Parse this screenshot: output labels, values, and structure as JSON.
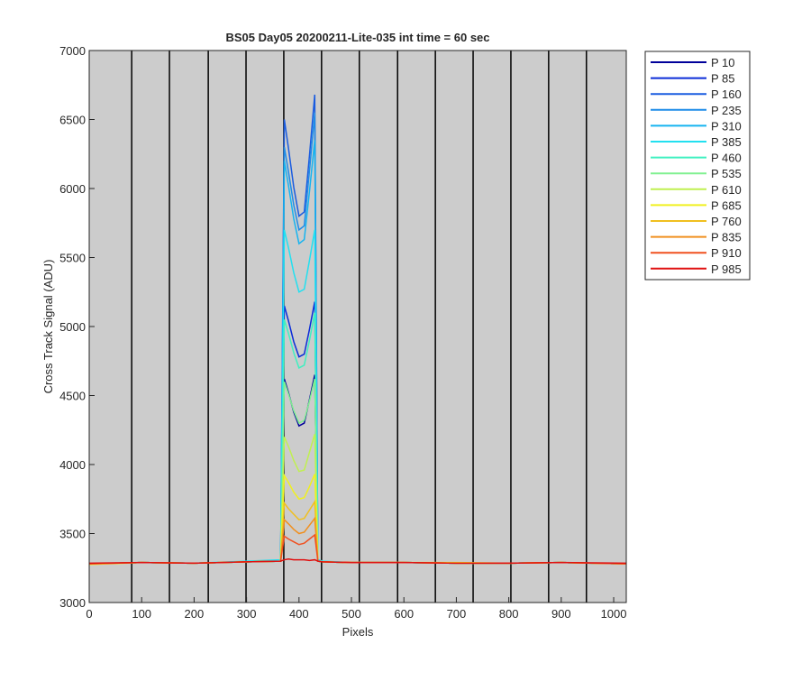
{
  "chart_data": {
    "type": "line",
    "title": "BS05 Day05 20200211-Lite-035 int time = 60 sec",
    "xlabel": "Pixels",
    "ylabel": "Cross Track Signal (ADU)",
    "x": [
      0,
      100,
      200,
      300,
      365,
      372,
      380,
      390,
      400,
      410,
      420,
      430,
      436,
      445,
      500,
      600,
      700,
      800,
      900,
      1024
    ],
    "xlim": [
      0,
      1024
    ],
    "ylim": [
      3000,
      7000
    ],
    "xticks": [
      0,
      100,
      200,
      300,
      400,
      500,
      600,
      700,
      800,
      900,
      1000
    ],
    "yticks": [
      3000,
      3500,
      4000,
      4500,
      5000,
      5500,
      6000,
      6500,
      7000
    ],
    "vertical_lines": [
      81,
      153,
      227,
      299,
      371,
      443,
      515,
      588,
      660,
      732,
      804,
      876,
      948
    ],
    "background": "#cccccc",
    "legend": "outside-right",
    "series": [
      {
        "name": "P 10",
        "color": "#00009a",
        "values": [
          3280,
          3290,
          3285,
          3295,
          3300,
          4620,
          4520,
          4380,
          4280,
          4300,
          4470,
          4650,
          3300,
          3295,
          3290,
          3290,
          3285,
          3285,
          3290,
          3280
        ]
      },
      {
        "name": "P 85",
        "color": "#0a2cd8",
        "values": [
          3280,
          3290,
          3285,
          3295,
          3300,
          5150,
          5040,
          4890,
          4780,
          4800,
          4980,
          5180,
          3300,
          3295,
          3290,
          3290,
          3285,
          3285,
          3290,
          3280
        ]
      },
      {
        "name": "P 160",
        "color": "#1a5ce0",
        "values": [
          3280,
          3290,
          3285,
          3295,
          3300,
          6500,
          6290,
          6010,
          5800,
          5830,
          6240,
          6680,
          3300,
          3295,
          3290,
          3290,
          3285,
          3285,
          3290,
          3280
        ]
      },
      {
        "name": "P 235",
        "color": "#1f8ce8",
        "values": [
          3280,
          3290,
          3285,
          3295,
          3300,
          6300,
          6120,
          5880,
          5700,
          5730,
          6130,
          6550,
          3300,
          3295,
          3290,
          3290,
          3285,
          3285,
          3290,
          3280
        ]
      },
      {
        "name": "P 310",
        "color": "#16b4f0",
        "values": [
          3280,
          3290,
          3285,
          3295,
          3300,
          6200,
          6020,
          5780,
          5600,
          5630,
          5980,
          6350,
          3300,
          3295,
          3290,
          3290,
          3285,
          3285,
          3290,
          3280
        ]
      },
      {
        "name": "P 385",
        "color": "#22e0f0",
        "values": [
          3280,
          3290,
          3285,
          3300,
          3310,
          5700,
          5570,
          5390,
          5250,
          5270,
          5480,
          5700,
          3310,
          3300,
          3290,
          3290,
          3285,
          3285,
          3290,
          3280
        ]
      },
      {
        "name": "P 460",
        "color": "#40f0c0",
        "values": [
          3280,
          3290,
          3285,
          3295,
          3300,
          5050,
          4950,
          4810,
          4700,
          4720,
          4900,
          5100,
          3300,
          3295,
          3290,
          3290,
          3285,
          3285,
          3290,
          3280
        ]
      },
      {
        "name": "P 535",
        "color": "#80f090",
        "values": [
          3280,
          3290,
          3285,
          3295,
          3300,
          4600,
          4510,
          4390,
          4300,
          4320,
          4460,
          4620,
          3300,
          3295,
          3290,
          3290,
          3285,
          3285,
          3290,
          3280
        ]
      },
      {
        "name": "P 610",
        "color": "#c0f050",
        "values": [
          3280,
          3290,
          3285,
          3295,
          3300,
          4200,
          4130,
          4030,
          3950,
          3960,
          4090,
          4220,
          3300,
          3295,
          3290,
          3290,
          3285,
          3285,
          3290,
          3280
        ]
      },
      {
        "name": "P 685",
        "color": "#f0f020",
        "values": [
          3275,
          3290,
          3285,
          3295,
          3300,
          3920,
          3870,
          3800,
          3750,
          3760,
          3840,
          3930,
          3300,
          3295,
          3290,
          3290,
          3290,
          3285,
          3290,
          3280
        ]
      },
      {
        "name": "P 760",
        "color": "#f0c020",
        "values": [
          3280,
          3290,
          3285,
          3295,
          3300,
          3720,
          3680,
          3640,
          3600,
          3610,
          3670,
          3730,
          3300,
          3295,
          3290,
          3290,
          3285,
          3285,
          3290,
          3280
        ]
      },
      {
        "name": "P 835",
        "color": "#f09020",
        "values": [
          3280,
          3290,
          3285,
          3295,
          3300,
          3600,
          3570,
          3530,
          3500,
          3510,
          3560,
          3610,
          3300,
          3295,
          3290,
          3290,
          3285,
          3285,
          3290,
          3280
        ]
      },
      {
        "name": "P 910",
        "color": "#f05020",
        "values": [
          3280,
          3290,
          3285,
          3295,
          3300,
          3480,
          3460,
          3440,
          3420,
          3430,
          3460,
          3490,
          3300,
          3295,
          3290,
          3290,
          3285,
          3285,
          3290,
          3280
        ]
      },
      {
        "name": "P 985",
        "color": "#e01010",
        "values": [
          3285,
          3290,
          3285,
          3295,
          3300,
          3310,
          3315,
          3310,
          3310,
          3310,
          3305,
          3310,
          3300,
          3295,
          3290,
          3290,
          3285,
          3285,
          3290,
          3285
        ]
      }
    ]
  }
}
